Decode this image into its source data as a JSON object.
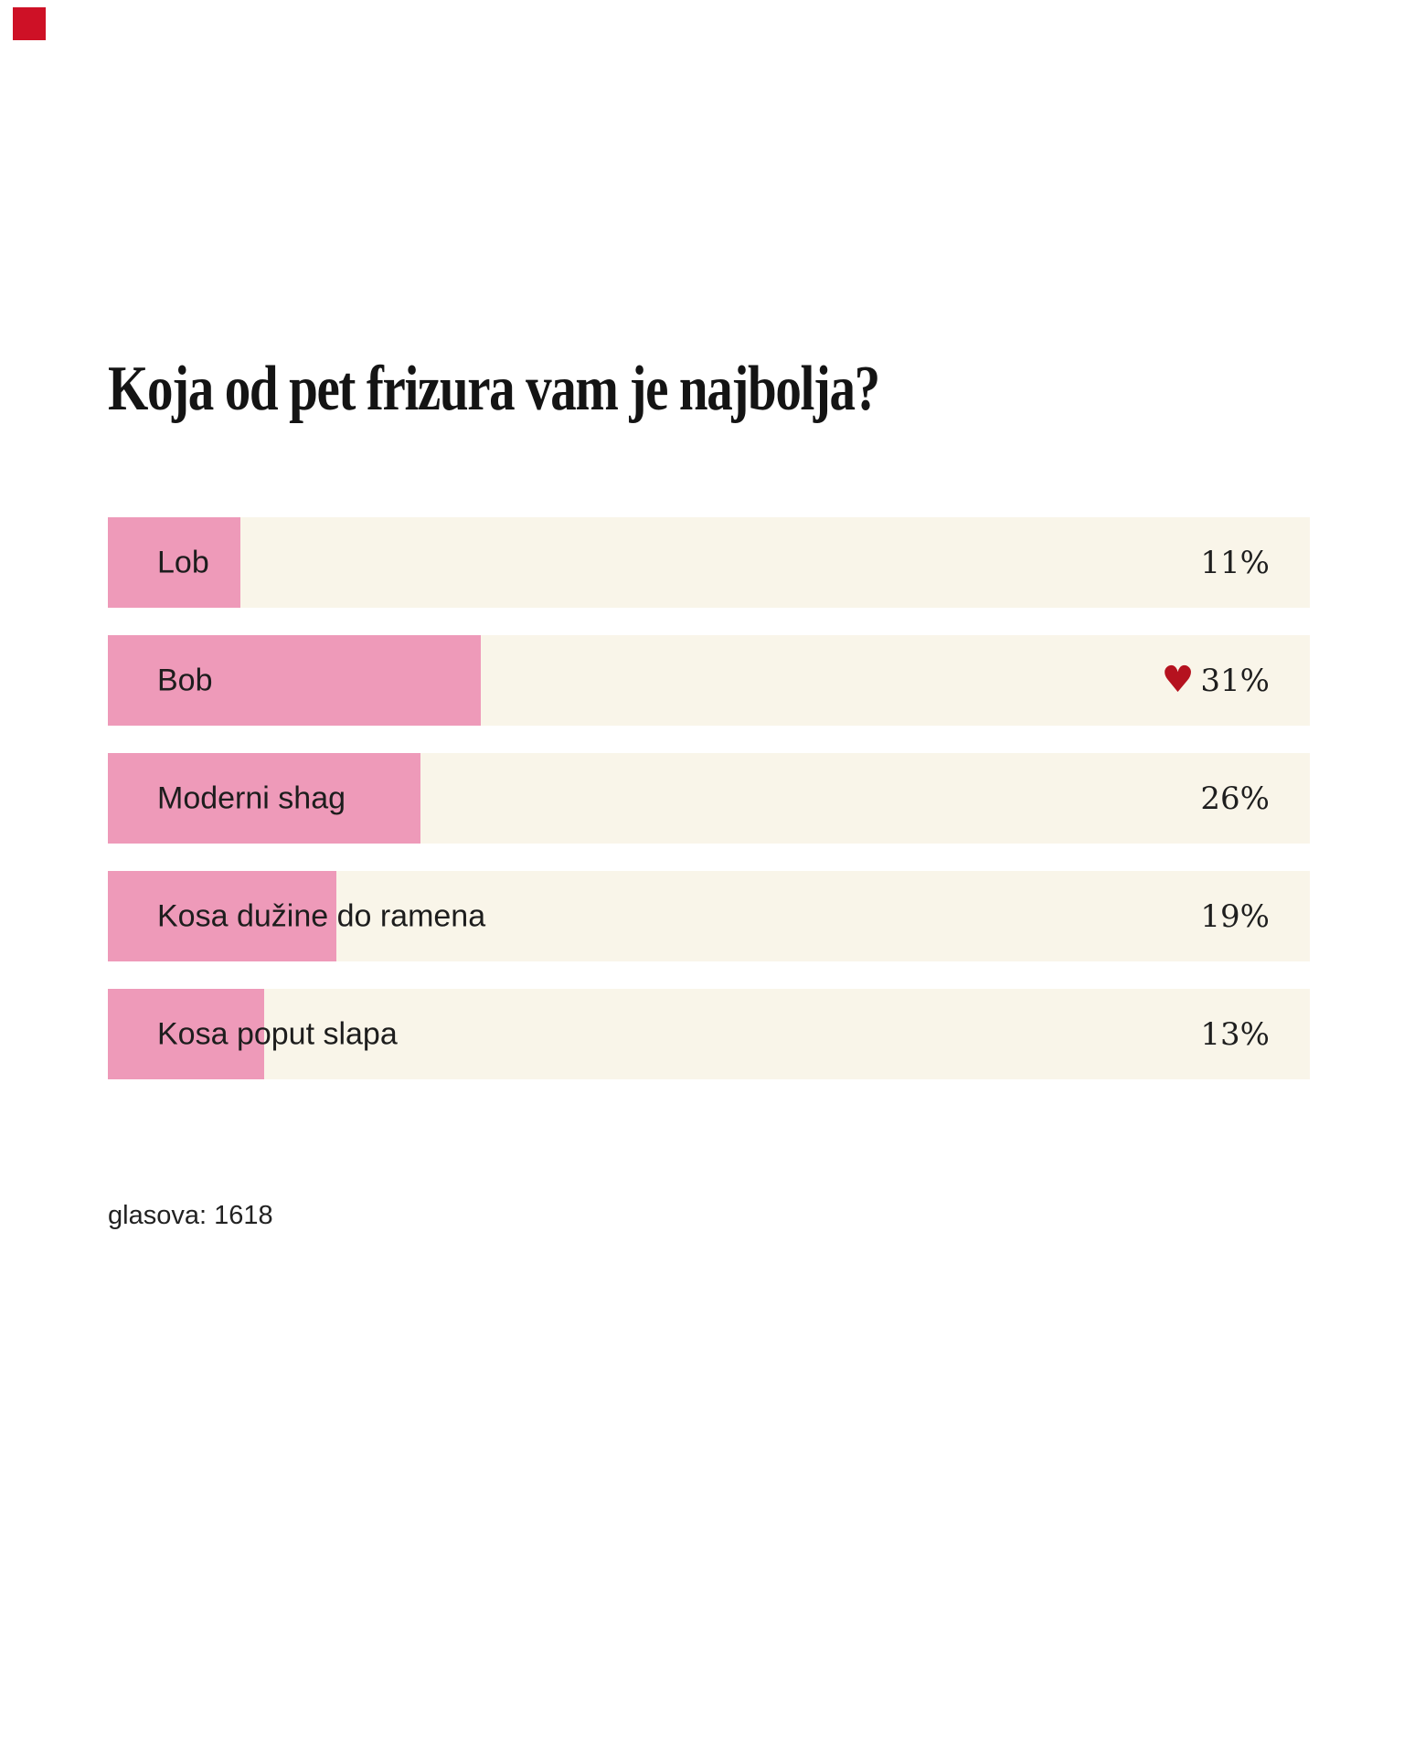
{
  "marker": {
    "name": "red-corner-marker",
    "color": "#ce1126"
  },
  "poll": {
    "title": "Koja od pet frizura vam je najbolja?",
    "options": [
      {
        "label": "Lob",
        "percent": 11,
        "percent_label": "11%",
        "favorite": false
      },
      {
        "label": "Bob",
        "percent": 31,
        "percent_label": "31%",
        "favorite": true
      },
      {
        "label": "Moderni shag",
        "percent": 26,
        "percent_label": "26%",
        "favorite": false
      },
      {
        "label": "Kosa dužine do ramena",
        "percent": 19,
        "percent_label": "19%",
        "favorite": false
      },
      {
        "label": "Kosa poput slapa",
        "percent": 13,
        "percent_label": "13%",
        "favorite": false
      }
    ],
    "heart_icon": "♥",
    "votes_label": "glasova: 1618",
    "colors": {
      "bar_fill": "#ee9ab9",
      "bar_background": "#f9f5e9",
      "heart": "#b5121f",
      "text": "#1d1d1d"
    }
  },
  "chart_data": {
    "type": "bar",
    "orientation": "horizontal",
    "title": "Koja od pet frizura vam je najbolja?",
    "categories": [
      "Lob",
      "Bob",
      "Moderni shag",
      "Kosa dužine do ramena",
      "Kosa poput slapa"
    ],
    "values": [
      11,
      31,
      26,
      19,
      13
    ],
    "unit": "%",
    "xlim": [
      0,
      100
    ],
    "highlighted_category": "Bob",
    "annotations": [
      "heart marker on Bob (31%)",
      "glasova: 1618"
    ],
    "legend": false,
    "grid": false
  }
}
